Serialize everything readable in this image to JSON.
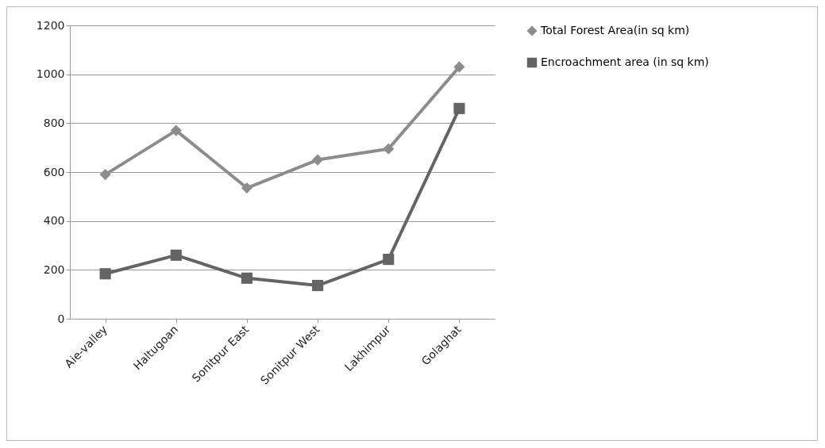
{
  "chart_data": {
    "type": "line",
    "categories": [
      "Aie-valley",
      "Haltugoan",
      "Sonitpur East",
      "Sonitpur West",
      "Lakhimpur",
      "Golaghat"
    ],
    "series": [
      {
        "name": "Total Forest Area(in sq km)",
        "color": "#8c8c8c",
        "marker": "diamond",
        "values": [
          590,
          770,
          535,
          650,
          695,
          1030
        ]
      },
      {
        "name": "Encroachment area (in sq km)",
        "color": "#646464",
        "marker": "square",
        "values": [
          184,
          260,
          166,
          136,
          243,
          860
        ]
      }
    ],
    "ylim": [
      0,
      1200
    ],
    "yticks": [
      0,
      200,
      400,
      600,
      800,
      1000,
      1200
    ],
    "grid": "y",
    "legend": "right",
    "line_style": "solid"
  }
}
